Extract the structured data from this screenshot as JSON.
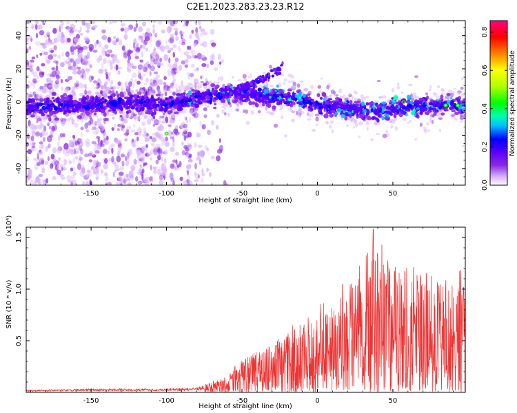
{
  "title": "C2E1.2023.283.23.23.R12",
  "chart_data": [
    {
      "type": "heatmap",
      "title": "C2E1.2023.283.23.23.R12",
      "xlabel": "Height of straight line (km)",
      "ylabel": "Frequency (Hz)",
      "xlim": [
        -193,
        98
      ],
      "ylim": [
        -50,
        49
      ],
      "xticks": [
        -150,
        -100,
        -50,
        0,
        50
      ],
      "yticks": [
        -40,
        -20,
        0,
        20,
        40
      ],
      "colorbar": {
        "label": "Normalized spectral amplitude",
        "range": [
          0.0,
          0.86
        ],
        "ticks": [
          0.0,
          0.2,
          0.4,
          0.6,
          0.8
        ],
        "colormap": [
          "#ffffff",
          "#d9b3ff",
          "#8a2be2",
          "#5a00ff",
          "#0000ff",
          "#00bfff",
          "#00ffb0",
          "#00ff00",
          "#b0ff00",
          "#ffff00",
          "#ff8000",
          "#ff0000",
          "#ff0080"
        ]
      },
      "ridge": {
        "description_points": [
          [
            -190,
            -3
          ],
          [
            -175,
            -3
          ],
          [
            -160,
            -2
          ],
          [
            -140,
            -1
          ],
          [
            -120,
            0
          ],
          [
            -100,
            -2
          ],
          [
            -90,
            0
          ],
          [
            -80,
            3
          ],
          [
            -70,
            4
          ],
          [
            -60,
            5
          ],
          [
            -50,
            5
          ],
          [
            -40,
            4
          ],
          [
            -30,
            3
          ],
          [
            -20,
            3
          ],
          [
            -10,
            1
          ],
          [
            0,
            -2
          ],
          [
            10,
            -3
          ],
          [
            20,
            -4
          ],
          [
            30,
            -5
          ],
          [
            40,
            -6
          ],
          [
            50,
            -4
          ],
          [
            60,
            -3
          ],
          [
            70,
            -3
          ],
          [
            80,
            -2
          ],
          [
            90,
            -2
          ],
          [
            98,
            -2
          ]
        ],
        "branch": [
          [
            -60,
            5
          ],
          [
            -45,
            10
          ],
          [
            -35,
            14
          ],
          [
            -25,
            20
          ],
          [
            -22,
            26
          ]
        ],
        "hotspots": [
          [
            57,
            0
          ],
          [
            85,
            -2
          ],
          [
            93,
            -2
          ],
          [
            -100,
            -19
          ]
        ]
      },
      "noise_region_x": [
        -193,
        -75
      ]
    },
    {
      "type": "line",
      "xlabel": "Height of straight line (km)",
      "ylabel": "SNR (10 * v/v)",
      "yscale_note": "(x10⁴)",
      "xlim": [
        -193,
        98
      ],
      "ylim": [
        0,
        1.6
      ],
      "xticks": [
        -150,
        -100,
        -50,
        0,
        50
      ],
      "yticks": [
        0.5,
        1.0,
        1.5
      ],
      "color": "#ef3333",
      "envelope_points": [
        [
          -193,
          0.02
        ],
        [
          -150,
          0.03
        ],
        [
          -100,
          0.03
        ],
        [
          -80,
          0.04
        ],
        [
          -70,
          0.08
        ],
        [
          -60,
          0.12
        ],
        [
          -50,
          0.25
        ],
        [
          -40,
          0.32
        ],
        [
          -30,
          0.38
        ],
        [
          -20,
          0.45
        ],
        [
          -10,
          0.55
        ],
        [
          0,
          0.6
        ],
        [
          10,
          0.75
        ],
        [
          20,
          0.85
        ],
        [
          30,
          1.0
        ],
        [
          40,
          1.1
        ],
        [
          50,
          1.0
        ],
        [
          60,
          0.95
        ],
        [
          70,
          0.9
        ],
        [
          80,
          0.85
        ],
        [
          90,
          0.85
        ],
        [
          98,
          0.9
        ]
      ],
      "peak": [
        37,
        1.58
      ]
    }
  ]
}
